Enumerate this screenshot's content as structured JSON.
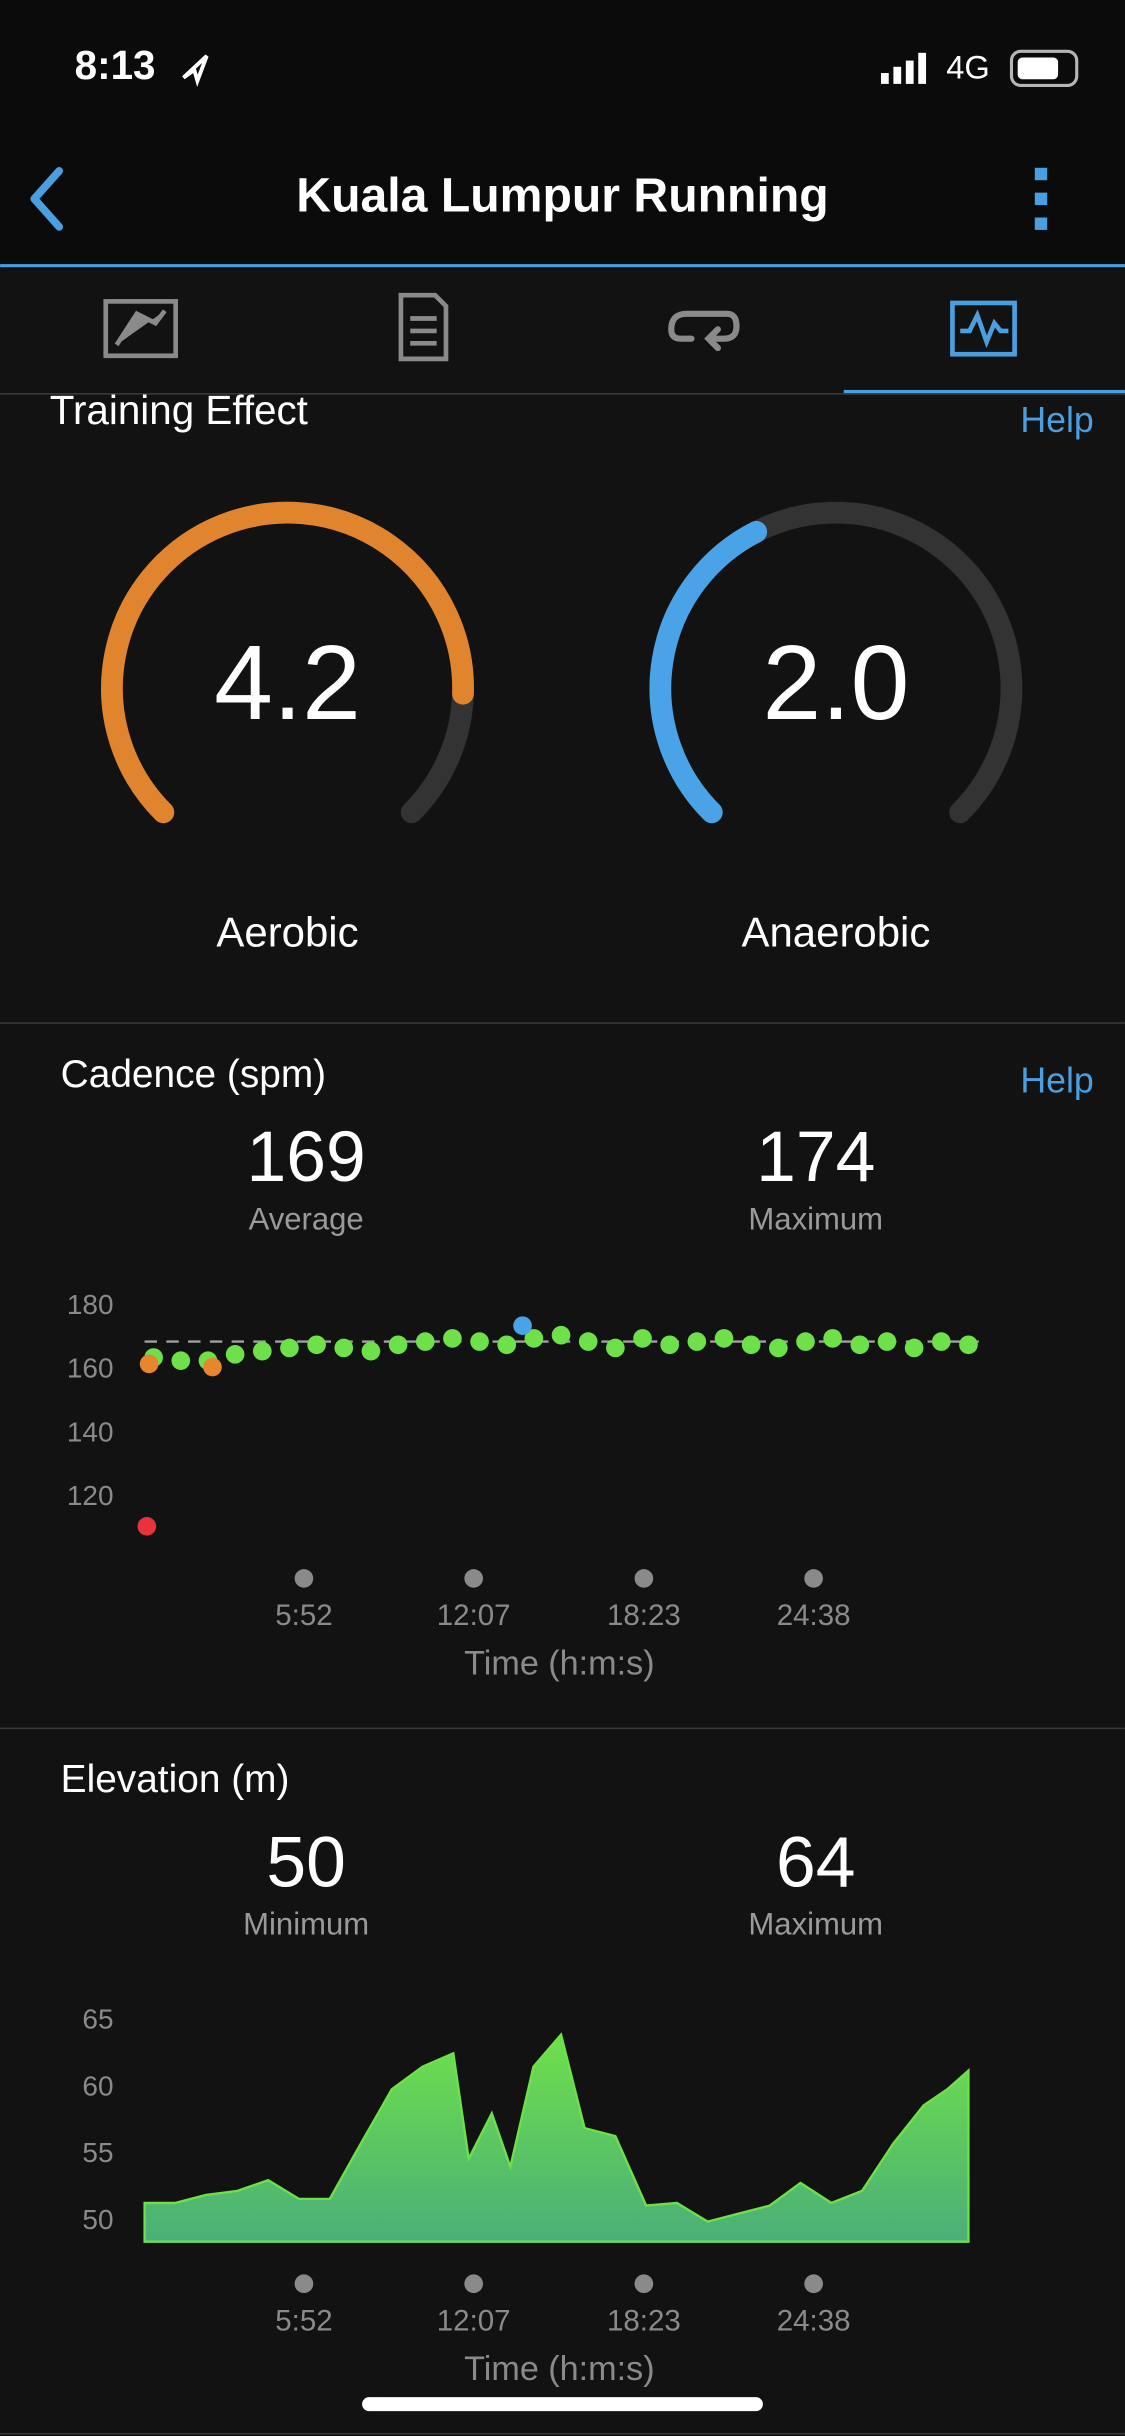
{
  "status_bar": {
    "time": "8:13",
    "network": "4G"
  },
  "header": {
    "title": "Kuala Lumpur Running"
  },
  "training_effect": {
    "title": "Training Effect",
    "help": "Help",
    "gauges": [
      {
        "name": "Aerobic",
        "value": 4.2,
        "range": [
          0,
          5
        ],
        "color": "#e0852e"
      },
      {
        "name": "Anaerobic",
        "value": 2,
        "value_label": "2.0",
        "range": [
          0,
          5
        ],
        "color": "#4aa3e6"
      }
    ]
  },
  "chart_data": [
    {
      "type": "scatter",
      "title": "Cadence (spm)",
      "help": "Help",
      "stats": [
        {
          "value": 169,
          "label": "Average"
        },
        {
          "value": 174,
          "label": "Maximum"
        }
      ],
      "xlabel": "Time (h:m:s)",
      "xlim": [
        0,
        1843
      ],
      "xticks": [
        {
          "value": 352,
          "label": "5:52"
        },
        {
          "value": 727,
          "label": "12:07"
        },
        {
          "value": 1103,
          "label": "18:23"
        },
        {
          "value": 1478,
          "label": "24:38"
        }
      ],
      "ylim": [
        105,
        185
      ],
      "yticks": [
        120,
        140,
        160,
        180
      ],
      "series": [
        {
          "color": "#6ee04a",
          "x": [
            20,
            80,
            140,
            200,
            260,
            320,
            380,
            440,
            500,
            560,
            620,
            680,
            740,
            800,
            860,
            920,
            980,
            1040,
            1100,
            1160,
            1220,
            1280,
            1340,
            1400,
            1460,
            1520,
            1580,
            1640,
            1700,
            1760,
            1820
          ],
          "values": [
            164,
            163,
            163,
            165,
            166,
            167,
            168,
            167,
            166,
            168,
            169,
            170,
            169,
            168,
            170,
            171,
            169,
            167,
            170,
            168,
            169,
            170,
            168,
            167,
            169,
            170,
            168,
            169,
            167,
            169,
            168
          ]
        },
        {
          "color": "#e8862e",
          "x": [
            10,
            150
          ],
          "values": [
            162,
            161
          ]
        },
        {
          "color": "#4aa3e6",
          "x": [
            835
          ],
          "values": [
            174
          ]
        },
        {
          "color": "#e8323c",
          "x": [
            5
          ],
          "values": [
            111
          ]
        }
      ]
    },
    {
      "type": "area",
      "title": "Elevation (m)",
      "stats": [
        {
          "value": 50,
          "label": "Minimum"
        },
        {
          "value": 64,
          "label": "Maximum"
        }
      ],
      "xlabel": "Time (h:m:s)",
      "xlim": [
        0,
        1843
      ],
      "xticks": [
        {
          "value": 352,
          "label": "5:52"
        },
        {
          "value": 727,
          "label": "12:07"
        },
        {
          "value": 1103,
          "label": "18:23"
        },
        {
          "value": 1478,
          "label": "24:38"
        }
      ],
      "ylim": [
        48.5,
        66
      ],
      "yticks": [
        50,
        55,
        60,
        65
      ],
      "series": [
        {
          "color": "#6ee04a",
          "x": [
            0,
            68,
            136,
            205,
            273,
            341,
            409,
            477,
            546,
            614,
            682,
            716,
            767,
            808,
            859,
            920,
            972,
            1040,
            1108,
            1176,
            1244,
            1312,
            1381,
            1449,
            1517,
            1585,
            1653,
            1721,
            1773,
            1820
          ],
          "values": [
            51.4,
            51.4,
            52,
            52.3,
            53.1,
            51.7,
            51.7,
            55.8,
            59.9,
            61.6,
            62.6,
            54.7,
            58.1,
            54.1,
            61.6,
            64,
            57,
            56.4,
            51.2,
            51.4,
            50,
            50.6,
            51.2,
            52.9,
            51.4,
            52.3,
            55.8,
            58.7,
            59.9,
            61.3
          ]
        }
      ]
    }
  ]
}
